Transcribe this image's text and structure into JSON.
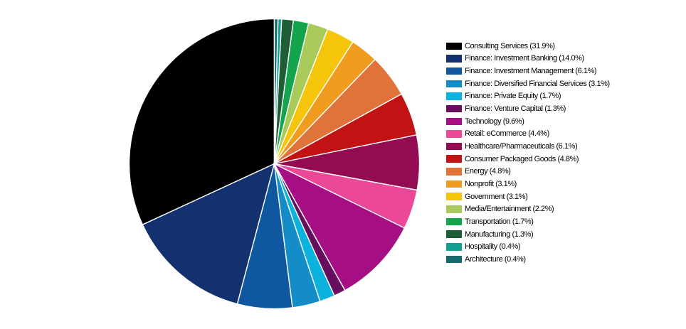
{
  "chart_data": {
    "type": "pie",
    "title": "",
    "legend_position": "right",
    "start_angle_deg_from_12": 0,
    "direction": "counterclockwise",
    "separator_color": "#ffffff",
    "background_color": "#ffffff",
    "slices": [
      {
        "label": "Consulting Services",
        "value": 31.9,
        "color": "#000000",
        "legend_text": "Consulting Services (31.9%)"
      },
      {
        "label": "Finance: Investment Banking",
        "value": 14.0,
        "color": "#14316f",
        "legend_text": "Finance: Investment Banking (14.0%)"
      },
      {
        "label": "Finance: Investment Management",
        "value": 6.1,
        "color": "#0f579f",
        "legend_text": "Finance: Investment Management (6.1%)"
      },
      {
        "label": "Finance: Diversified Financial Services",
        "value": 3.1,
        "color": "#148cc8",
        "legend_text": "Finance: Diversified Financial Services (3.1%)"
      },
      {
        "label": "Finance: Private Equity",
        "value": 1.7,
        "color": "#0bb2dd",
        "legend_text": "Finance: Private Equity (1.7%)"
      },
      {
        "label": "Finance: Venture Capital",
        "value": 1.3,
        "color": "#670f5e",
        "legend_text": "Finance: Venture Capital (1.3%)"
      },
      {
        "label": "Technology",
        "value": 9.6,
        "color": "#a50f83",
        "legend_text": "Technology (9.6%)"
      },
      {
        "label": "Retail: eCommerce",
        "value": 4.4,
        "color": "#ec4898",
        "legend_text": "Retail: eCommerce (4.4%)"
      },
      {
        "label": "Healthcare/Pharmaceuticals",
        "value": 6.1,
        "color": "#930c51",
        "legend_text": "Healthcare/Pharmaceuticals (6.1%)"
      },
      {
        "label": "Consumer Packaged Goods",
        "value": 4.8,
        "color": "#c11313",
        "legend_text": "Consumer Packaged Goods (4.8%)"
      },
      {
        "label": "Energy",
        "value": 4.8,
        "color": "#e0733a",
        "legend_text": "Energy (4.8%)"
      },
      {
        "label": "Nonprofit",
        "value": 3.1,
        "color": "#f09c1e",
        "legend_text": "Nonprofit (3.1%)"
      },
      {
        "label": "Government",
        "value": 3.1,
        "color": "#f5c50c",
        "legend_text": "Government (3.1%)"
      },
      {
        "label": "Media/Entertainment",
        "value": 2.2,
        "color": "#a8ca5a",
        "legend_text": "Media/Entertainment (2.2%)"
      },
      {
        "label": "Transportation",
        "value": 1.7,
        "color": "#14a44d",
        "legend_text": "Transportation (1.7%)"
      },
      {
        "label": "Manufacturing",
        "value": 1.3,
        "color": "#1e5e37",
        "legend_text": "Manufacturing (1.3%)"
      },
      {
        "label": "Hospitality",
        "value": 0.4,
        "color": "#10a093",
        "legend_text": "Hospitality (0.4%)"
      },
      {
        "label": "Architecture",
        "value": 0.4,
        "color": "#166a6e",
        "legend_text": "Architecture (0.4%)"
      }
    ]
  }
}
